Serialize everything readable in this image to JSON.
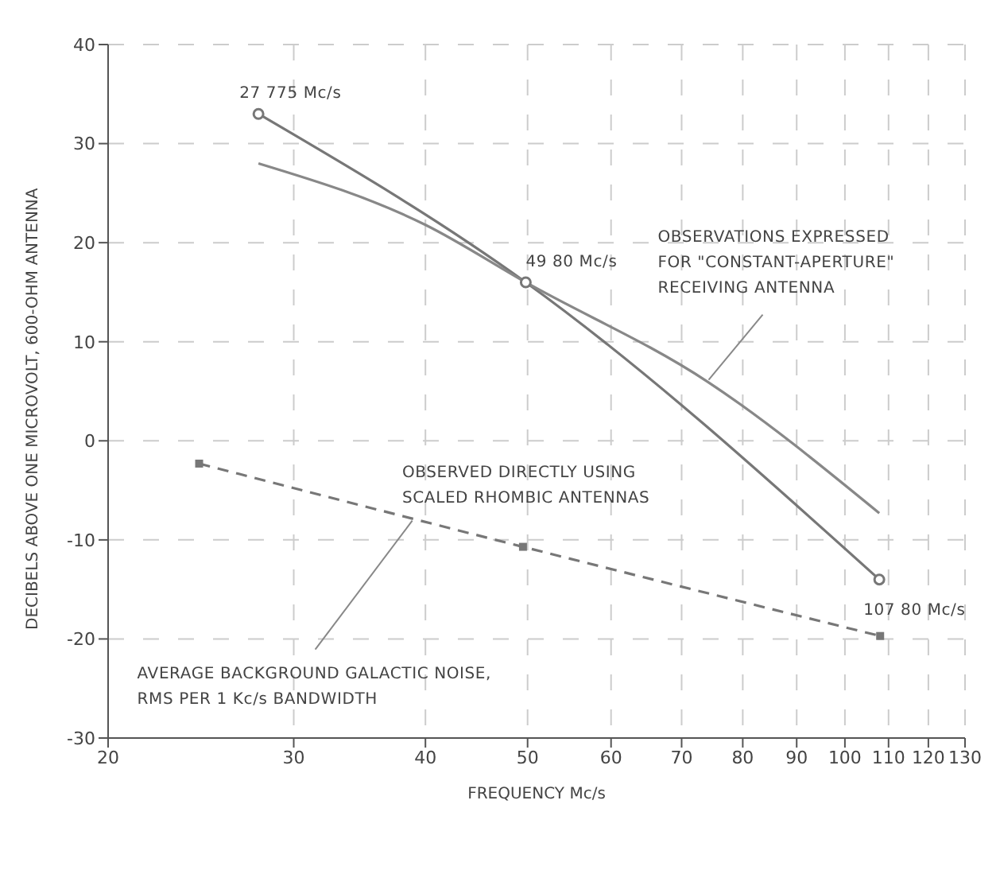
{
  "chart_data": {
    "type": "line",
    "xlabel": "FREQUENCY Mc/s",
    "ylabel": "DECIBELS ABOVE ONE MICROVOLT, 600-OHM ANTENNA",
    "log": "x",
    "xlim": [
      20,
      130
    ],
    "xticks": [
      20,
      30,
      40,
      50,
      60,
      70,
      80,
      90,
      100,
      110,
      120,
      130
    ],
    "ylim": [
      -30,
      40
    ],
    "yticks": [
      -30,
      -20,
      -10,
      0,
      10,
      20,
      30,
      40
    ],
    "grid": true,
    "legend": false,
    "series": [
      {
        "type": "line",
        "color": "#777777",
        "x": [
          27.775,
          49.8,
          107.8
        ],
        "values": [
          33,
          16,
          -14
        ],
        "marker": "circle",
        "line_style": "solid"
      },
      {
        "type": "line",
        "color": "#888888",
        "x": [
          27.775,
          40,
          49.8,
          74,
          107.8
        ],
        "values": [
          28,
          21.8,
          16,
          6,
          -7.3
        ],
        "marker": "none",
        "line_style": "solid"
      },
      {
        "type": "line",
        "color": "#777777",
        "x": [
          24.4,
          49.5,
          108
        ],
        "values": [
          -2.3,
          -10.7,
          -19.7
        ],
        "marker": "square",
        "line_style": "dashed"
      }
    ],
    "annotations": [
      {
        "text": "27 775 Mc/s",
        "x": 27.775,
        "y": 33
      },
      {
        "text": "49 80 Mc/s",
        "x": 49.8,
        "y": 16
      },
      {
        "text": "107 80 Mc/s",
        "x": 107.8,
        "y": -14
      },
      {
        "text": "OBSERVATIONS EXPRESSED\nFOR \"CONSTANT-APERTURE\"\nRECEIVING ANTENNA",
        "x": 74,
        "y": 6
      },
      "OBSERVED DIRECTLY USING\nSCALED RHOMBIC ANTENNAS",
      {
        "text": "AVERAGE BACKGROUND GALACTIC NOISE,\nRMS PER 1 Kc/s BANDWIDTH",
        "x": 39,
        "y": -7.9
      }
    ]
  }
}
